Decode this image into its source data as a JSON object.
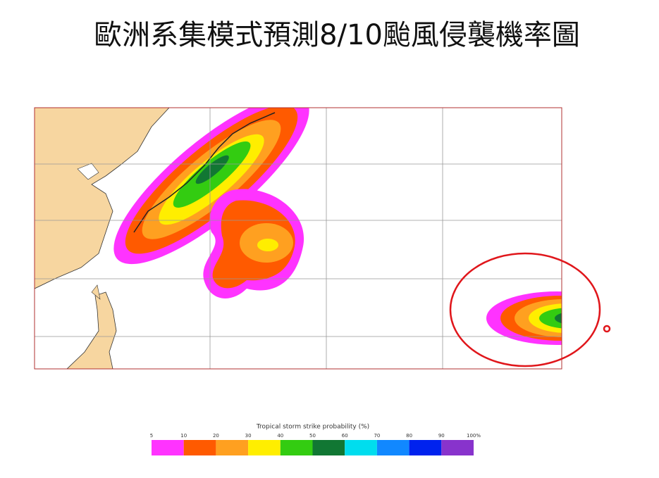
{
  "title": "歐洲系集模式預測8/10颱風侵襲機率圖",
  "legend": {
    "title": "Tropical storm strike probability (%)",
    "ticks": [
      "5",
      "10",
      "20",
      "30",
      "40",
      "50",
      "60",
      "70",
      "80",
      "90",
      "100%"
    ],
    "colors": [
      "#ff33ff",
      "#ff5a00",
      "#ffa020",
      "#ffee00",
      "#33cc11",
      "#117733",
      "#00ddee",
      "#1188ff",
      "#0022ee",
      "#8833cc"
    ]
  }
}
